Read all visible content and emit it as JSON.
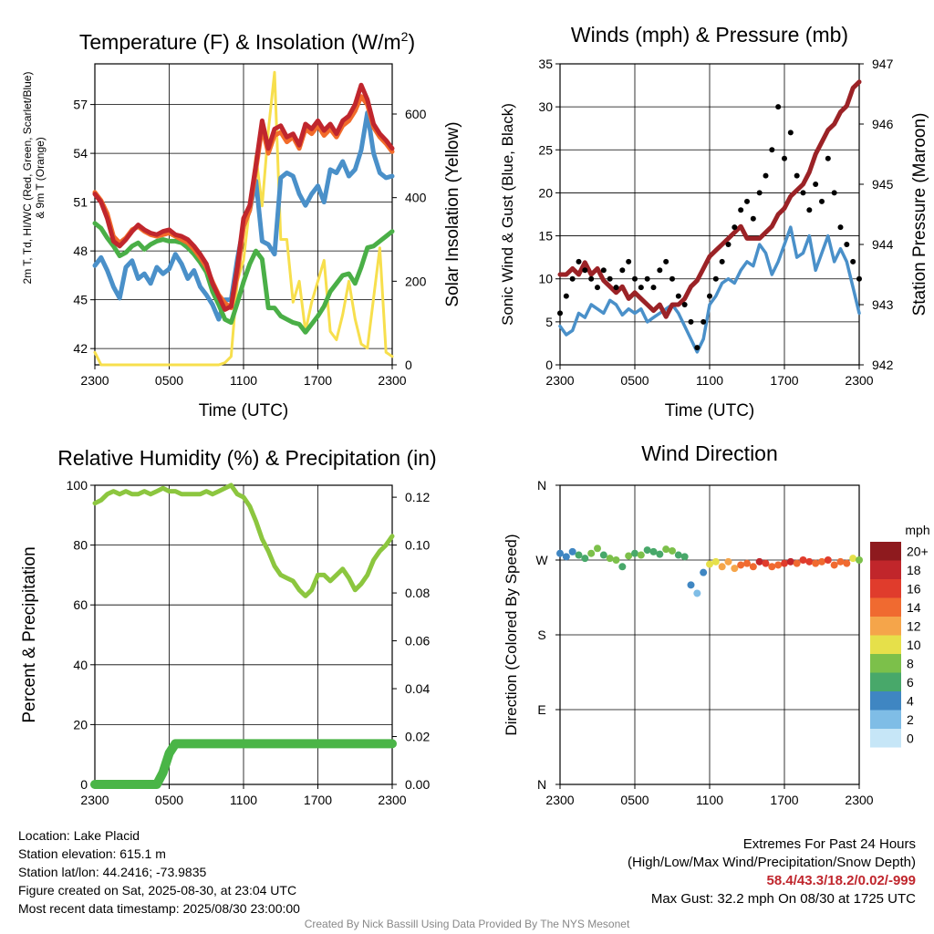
{
  "chart_data": [
    {
      "panel": "temperature",
      "type": "line",
      "title": "Temperature (F) & Insolation (W/m²)",
      "xlabel": "Time (UTC)",
      "ylabel_left": "2m T, Td, HI/WC (Red, Green, Scarlet/Blue) & 9m T (Orange)",
      "ylabel_right": "Solar Insolation (Yellow)",
      "x_ticks": [
        "2300",
        "0500",
        "1100",
        "1700",
        "2300"
      ],
      "x_range_hours": [
        0,
        24
      ],
      "y_left_range": [
        41,
        59.5
      ],
      "y_left_ticks": [
        42,
        45,
        48,
        51,
        54,
        57
      ],
      "y_right_range": [
        0,
        720
      ],
      "y_right_ticks": [
        0,
        200,
        400,
        600
      ],
      "grid": true,
      "x_hours": [
        0,
        0.5,
        1,
        1.5,
        2,
        2.5,
        3,
        3.5,
        4,
        4.5,
        5,
        5.5,
        6,
        6.5,
        7,
        7.5,
        8,
        8.5,
        9,
        9.5,
        10,
        10.5,
        11,
        11.5,
        12,
        12.5,
        13,
        13.5,
        14,
        14.5,
        15,
        15.5,
        16,
        16.5,
        17,
        17.5,
        18,
        18.5,
        19,
        19.5,
        20,
        20.5,
        21,
        21.5,
        22,
        22.5,
        23,
        23.5,
        24
      ],
      "series": [
        {
          "name": "2m T",
          "color": "#c0262d",
          "values": [
            51.5,
            51.0,
            50.0,
            48.6,
            48.3,
            48.7,
            49.2,
            49.6,
            49.3,
            49.1,
            49.0,
            49.2,
            49.3,
            49.0,
            48.9,
            48.7,
            48.3,
            47.8,
            47.2,
            46.0,
            45.2,
            44.4,
            44.6,
            47.0,
            50.0,
            50.8,
            53.3,
            56.0,
            54.3,
            55.5,
            55.7,
            55.0,
            55.2,
            54.5,
            55.8,
            55.5,
            56.0,
            55.4,
            55.8,
            55.2,
            56.0,
            56.3,
            57.0,
            58.2,
            57.3,
            55.8,
            55.2,
            54.8,
            54.3
          ]
        },
        {
          "name": "9m T",
          "color": "#f26b2a",
          "values": [
            51.6,
            51.1,
            50.3,
            48.9,
            48.5,
            48.8,
            49.3,
            49.5,
            49.2,
            49.0,
            48.9,
            49.0,
            49.1,
            48.9,
            48.7,
            48.5,
            48.1,
            47.6,
            47.0,
            46.1,
            45.3,
            44.8,
            44.5,
            46.5,
            49.5,
            50.5,
            53.0,
            55.6,
            54.0,
            55.1,
            55.3,
            54.7,
            55.0,
            54.3,
            55.5,
            55.2,
            55.7,
            55.1,
            55.5,
            55.0,
            55.7,
            56.0,
            56.6,
            57.5,
            57.0,
            55.6,
            55.0,
            54.6,
            54.1
          ]
        },
        {
          "name": "Td",
          "color": "#4aaf47",
          "values": [
            49.7,
            49.4,
            48.8,
            48.3,
            47.7,
            47.9,
            48.3,
            48.5,
            48.1,
            48.4,
            48.6,
            48.7,
            48.6,
            48.6,
            48.5,
            48.2,
            47.8,
            47.3,
            46.7,
            45.5,
            44.7,
            43.8,
            43.6,
            44.8,
            46.1,
            47.2,
            48.0,
            47.5,
            44.5,
            44.5,
            44.0,
            43.8,
            43.6,
            43.5,
            43.0,
            43.5,
            44.0,
            44.6,
            45.5,
            46.0,
            46.5,
            46.6,
            46.0,
            47.0,
            48.2,
            48.3,
            48.6,
            48.9,
            49.2
          ]
        },
        {
          "name": "HI/WC",
          "color": "#4a90c9",
          "values": [
            47.1,
            47.6,
            46.8,
            45.8,
            45.1,
            47.0,
            47.4,
            46.3,
            46.6,
            46.0,
            47.0,
            46.6,
            46.9,
            47.8,
            47.2,
            46.3,
            46.8,
            45.8,
            45.3,
            44.7,
            43.8,
            45.0,
            45.0,
            47.5,
            49.5,
            50.5,
            52.3,
            48.6,
            48.4,
            47.8,
            52.5,
            52.8,
            52.6,
            51.5,
            50.8,
            51.5,
            52.0,
            51.0,
            53.0,
            52.8,
            53.5,
            52.6,
            53.0,
            54.2,
            56.5,
            54.0,
            52.8,
            52.5,
            52.6
          ]
        }
      ],
      "insolation": {
        "name": "Solar Insolation",
        "color": "#f7df4d",
        "values": [
          30,
          0,
          0,
          0,
          0,
          0,
          0,
          0,
          0,
          0,
          0,
          0,
          0,
          0,
          0,
          0,
          0,
          0,
          0,
          0,
          0,
          5,
          20,
          200,
          250,
          380,
          500,
          380,
          560,
          700,
          300,
          300,
          150,
          200,
          80,
          150,
          200,
          250,
          80,
          60,
          120,
          200,
          110,
          50,
          40,
          160,
          280,
          30,
          20
        ]
      }
    },
    {
      "panel": "winds",
      "type": "scatter",
      "title": "Winds (mph) & Pressure (mb)",
      "xlabel": "Time (UTC)",
      "ylabel_left": "Sonic Wind & Gust (Blue, Black)",
      "ylabel_right": "Station Pressure (Maroon)",
      "x_ticks": [
        "2300",
        "0500",
        "1100",
        "1700",
        "2300"
      ],
      "x_range_hours": [
        0,
        24
      ],
      "y_left_range": [
        0,
        35
      ],
      "y_left_ticks": [
        0,
        5,
        10,
        15,
        20,
        25,
        30,
        35
      ],
      "y_right_range": [
        942,
        947
      ],
      "y_right_ticks": [
        942,
        943,
        944,
        945,
        946,
        947
      ],
      "grid": true,
      "x_hours": [
        0,
        0.5,
        1,
        1.5,
        2,
        2.5,
        3,
        3.5,
        4,
        4.5,
        5,
        5.5,
        6,
        6.5,
        7,
        7.5,
        8,
        8.5,
        9,
        9.5,
        10,
        10.5,
        11,
        11.5,
        12,
        12.5,
        13,
        13.5,
        14,
        14.5,
        15,
        15.5,
        16,
        16.5,
        17,
        17.5,
        18,
        18.5,
        19,
        19.5,
        20,
        20.5,
        21,
        21.5,
        22,
        22.5,
        23,
        23.5,
        24
      ],
      "series": [
        {
          "name": "Sonic Wind",
          "color": "#4a90c9",
          "values": [
            4.5,
            3.5,
            4.0,
            6.0,
            5.5,
            7.0,
            6.5,
            6.0,
            7.5,
            7.0,
            5.8,
            6.5,
            6.0,
            6.5,
            5.0,
            5.5,
            6.0,
            6.5,
            7.0,
            6.0,
            4.5,
            3.0,
            1.5,
            3.0,
            7.0,
            8.0,
            9.5,
            10.0,
            9.5,
            11.0,
            12.0,
            11.5,
            14.0,
            13.0,
            10.5,
            12.0,
            14.0,
            16.0,
            12.5,
            13.0,
            15.0,
            11.0,
            13.0,
            15.0,
            12.0,
            13.5,
            12.0,
            9.0,
            6.0
          ]
        },
        {
          "name": "Gust",
          "color": "#000000",
          "values": [
            6,
            8,
            10,
            12,
            11,
            10,
            9,
            11,
            10,
            9,
            11,
            12,
            10,
            9,
            10,
            9,
            11,
            12,
            10,
            8,
            7,
            5,
            2,
            5,
            8,
            10,
            12,
            14,
            16,
            18,
            19,
            17,
            20,
            22,
            25,
            30,
            24,
            27,
            22,
            20,
            18,
            21,
            19,
            24,
            20,
            16,
            14,
            12,
            10
          ]
        },
        {
          "name": "Station Pressure",
          "color": "#9b2226",
          "values": [
            943.5,
            943.5,
            943.6,
            943.5,
            943.7,
            943.5,
            943.6,
            943.4,
            943.3,
            943.2,
            943.3,
            943.1,
            943.2,
            943.1,
            943.0,
            942.9,
            943.0,
            942.8,
            943.0,
            943.0,
            943.1,
            943.3,
            943.4,
            943.6,
            943.8,
            943.9,
            944.0,
            944.1,
            944.2,
            944.3,
            944.1,
            944.1,
            944.1,
            944.2,
            944.3,
            944.5,
            944.6,
            944.8,
            944.9,
            945.0,
            945.2,
            945.5,
            945.7,
            945.9,
            946.0,
            946.2,
            946.3,
            946.6,
            946.7
          ]
        }
      ]
    },
    {
      "panel": "humidity",
      "type": "line",
      "title": "Relative Humidity (%) & Precipitation (in)",
      "ylabel_left": "Percent & Precipitation",
      "x_ticks": [
        "2300",
        "0500",
        "1100",
        "1700",
        "2300"
      ],
      "x_range_hours": [
        0,
        24
      ],
      "y_left_range": [
        0,
        100
      ],
      "y_left_ticks": [
        0,
        20,
        40,
        60,
        80,
        100
      ],
      "y_right_range": [
        0,
        0.125
      ],
      "y_right_ticks": [
        "0.00",
        "0.02",
        "0.04",
        "0.06",
        "0.08",
        "0.10",
        "0.12"
      ],
      "grid": true,
      "x_hours": [
        0,
        0.5,
        1,
        1.5,
        2,
        2.5,
        3,
        3.5,
        4,
        4.5,
        5,
        5.5,
        6,
        6.5,
        7,
        7.5,
        8,
        8.5,
        9,
        9.5,
        10,
        10.5,
        11,
        11.5,
        12,
        12.5,
        13,
        13.5,
        14,
        14.5,
        15,
        15.5,
        16,
        16.5,
        17,
        17.5,
        18,
        18.5,
        19,
        19.5,
        20,
        20.5,
        21,
        21.5,
        22,
        22.5,
        23,
        23.5,
        24
      ],
      "series": [
        {
          "name": "Relative Humidity",
          "color": "#8cc63f",
          "values": [
            94,
            95,
            97,
            98,
            97,
            98,
            97,
            97,
            98,
            97,
            98,
            99,
            98,
            98,
            97,
            97,
            97,
            97,
            98,
            97,
            98,
            99,
            100,
            97,
            96,
            93,
            88,
            82,
            78,
            73,
            70,
            69,
            68,
            65,
            63,
            65,
            70,
            70,
            68,
            70,
            72,
            69,
            65,
            67,
            70,
            75,
            78,
            80,
            83
          ]
        },
        {
          "name": "Precipitation",
          "color": "#4ab547",
          "axis": "right",
          "values": [
            0,
            0,
            0,
            0,
            0,
            0,
            0,
            0,
            0,
            0,
            0,
            0.005,
            0.013,
            0.017,
            0.017,
            0.017,
            0.017,
            0.017,
            0.017,
            0.017,
            0.017,
            0.017,
            0.017,
            0.017,
            0.017,
            0.017,
            0.017,
            0.017,
            0.017,
            0.017,
            0.017,
            0.017,
            0.017,
            0.017,
            0.017,
            0.017,
            0.017,
            0.017,
            0.017,
            0.017,
            0.017,
            0.017,
            0.017,
            0.017,
            0.017,
            0.017,
            0.017,
            0.017,
            0.017
          ]
        }
      ]
    },
    {
      "panel": "wind_direction",
      "type": "scatter",
      "title": "Wind Direction",
      "ylabel_left": "Direction (Colored By Speed)",
      "x_ticks": [
        "2300",
        "0500",
        "1100",
        "1700",
        "2300"
      ],
      "x_range_hours": [
        0,
        24
      ],
      "y_ticks": [
        "N",
        "E",
        "S",
        "W",
        "N"
      ],
      "y_range_deg": [
        0,
        360
      ],
      "grid": true,
      "legend_title": "mph",
      "legend_labels": [
        "0",
        "2",
        "4",
        "6",
        "8",
        "10",
        "12",
        "14",
        "16",
        "18",
        "20+"
      ],
      "legend_colors": [
        "#c6e6f7",
        "#7fbde6",
        "#3f86c2",
        "#48a86a",
        "#7cc04a",
        "#e6e04a",
        "#f5a54a",
        "#f06a30",
        "#e03c2c",
        "#c1262b",
        "#8e1a1e"
      ],
      "x_hours": [
        0,
        0.5,
        1,
        1.5,
        2,
        2.5,
        3,
        3.5,
        4,
        4.5,
        5,
        5.5,
        6,
        6.5,
        7,
        7.5,
        8,
        8.5,
        9,
        9.5,
        10,
        10.5,
        11,
        11.5,
        12,
        12.5,
        13,
        13.5,
        14,
        14.5,
        15,
        15.5,
        16,
        16.5,
        17,
        17.5,
        18,
        18.5,
        19,
        19.5,
        20,
        20.5,
        21,
        21.5,
        22,
        22.5,
        23,
        23.5,
        24
      ],
      "direction_deg": [
        278,
        274,
        280,
        276,
        272,
        278,
        284,
        276,
        272,
        270,
        262,
        275,
        278,
        276,
        282,
        280,
        277,
        283,
        281,
        276,
        274,
        240,
        230,
        255,
        265,
        268,
        262,
        268,
        260,
        264,
        266,
        262,
        268,
        266,
        262,
        264,
        266,
        268,
        266,
        270,
        268,
        266,
        268,
        270,
        264,
        268,
        266,
        272,
        270
      ],
      "speed_mph": [
        4,
        3,
        4,
        6,
        6,
        7,
        7,
        6,
        8,
        7,
        6,
        7,
        6,
        7,
        5,
        5,
        6,
        7,
        7,
        6,
        5,
        3,
        2,
        3,
        9,
        10,
        11,
        12,
        12,
        13,
        14,
        14,
        17,
        16,
        13,
        14,
        15,
        17,
        14,
        15,
        16,
        13,
        14,
        16,
        13,
        14,
        13,
        10,
        8
      ]
    }
  ],
  "info": {
    "location": "Location: Lake Placid",
    "elevation": "Station elevation: 615.1 m",
    "latlon": "Station lat/lon: 44.2416; -73.9835",
    "created": "Figure created on Sat, 2025-08-30, at 23:04 UTC",
    "recent": "Most recent data timestamp: 2025/08/30 23:00:00"
  },
  "extremes": {
    "header": "Extremes For Past 24 Hours",
    "subheader": "(High/Low/Max Wind/Precipitation/Snow Depth)",
    "values": "58.4/43.3/18.2/0.02/-999",
    "max_gust": "Max Gust: 32.2 mph On 08/30 at 1725 UTC"
  },
  "credit": "Created By Nick Bassill Using Data Provided By The NYS Mesonet"
}
